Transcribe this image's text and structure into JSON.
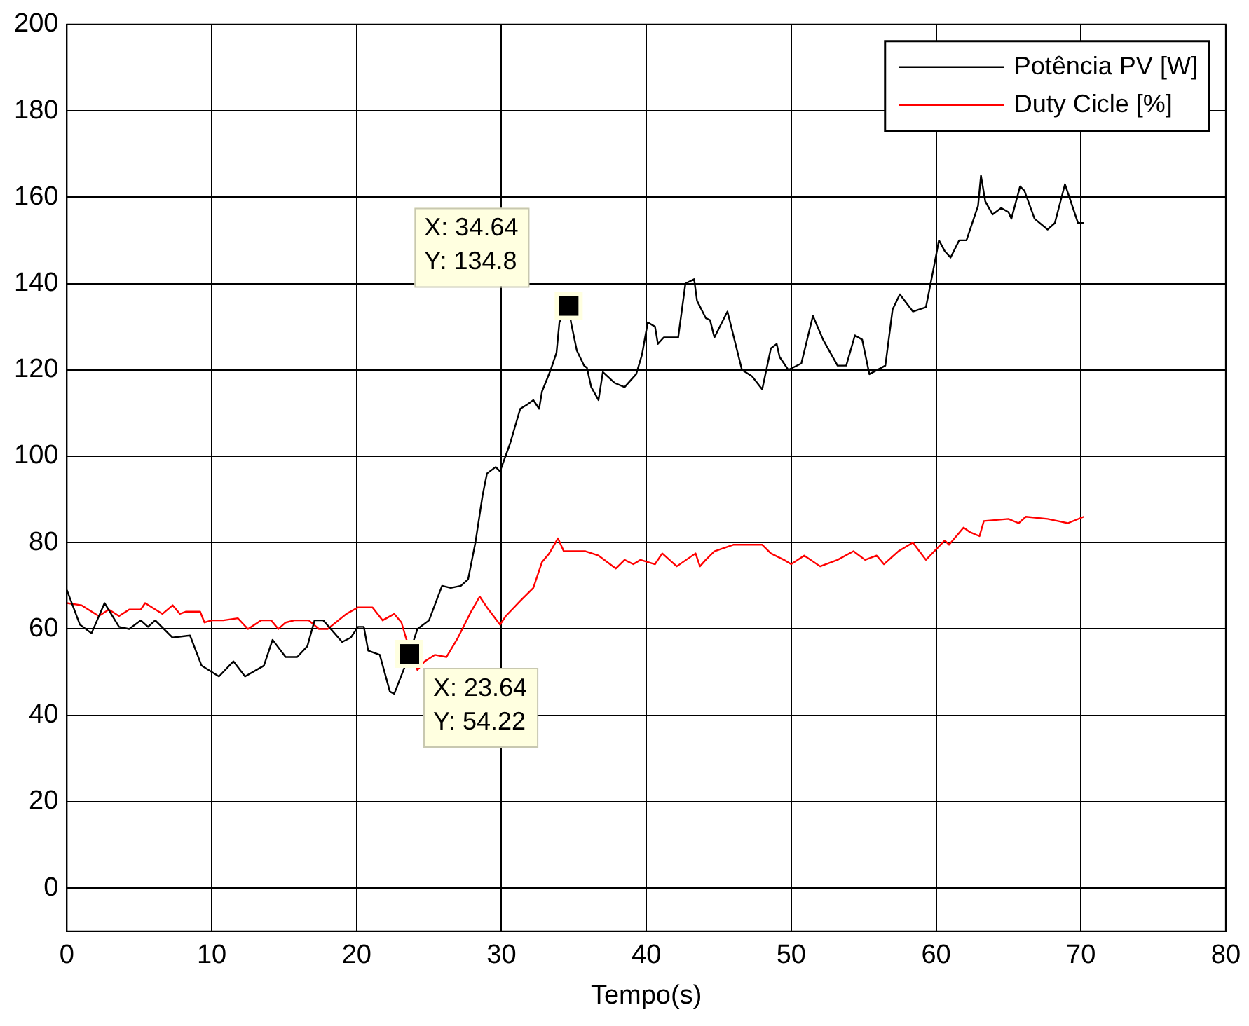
{
  "chart_data": {
    "type": "line",
    "xlabel": "Tempo(s)",
    "xlim": [
      0,
      80
    ],
    "xticks": [
      0,
      10,
      20,
      30,
      40,
      50,
      60,
      70,
      80
    ],
    "ylim": [
      -10,
      200
    ],
    "yticks": [
      0,
      20,
      40,
      60,
      80,
      100,
      120,
      140,
      160,
      180,
      200
    ],
    "grid": true,
    "legend": "top right",
    "marker": "none",
    "line_style": "solid",
    "series": [
      {
        "name": "Potência PV [W]",
        "color": "#000000",
        "x": [
          0,
          0.9,
          1.7,
          2.6,
          3.6,
          4.3,
          5.1,
          5.6,
          6.1,
          7.3,
          8.5,
          9.3,
          10.5,
          11.5,
          12.3,
          13.6,
          14.2,
          15.1,
          15.9,
          16.6,
          17.1,
          17.7,
          19,
          19.6,
          20.1,
          20.5,
          20.8,
          21.6,
          22.3,
          22.6,
          23.3,
          23.64,
          24.2,
          25,
          25.9,
          26.5,
          27.2,
          27.7,
          28.2,
          28.7,
          29,
          29.6,
          29.9,
          30.6,
          31.3,
          31.8,
          32.2,
          32.6,
          32.8,
          33.4,
          33.8,
          34,
          34.64,
          34.8,
          35.2,
          35.7,
          35.9,
          36.2,
          36.7,
          37,
          37.8,
          38.5,
          39.3,
          39.7,
          40.1,
          40.6,
          40.8,
          41.2,
          42.2,
          42.7,
          43.3,
          43.5,
          44.1,
          44.4,
          44.7,
          45.6,
          46.6,
          47.3,
          48,
          48.6,
          49,
          49.2,
          49.8,
          50.7,
          51.5,
          52.2,
          53.2,
          53.8,
          54.4,
          54.9,
          55.4,
          56.5,
          57,
          57.5,
          58.4,
          59.3,
          59.8,
          60.2,
          60.6,
          61,
          61.6,
          62.1,
          62.9,
          63.1,
          63.4,
          63.9,
          64.5,
          65,
          65.2,
          65.8,
          66.1,
          66.8,
          67.7,
          68.2,
          68.9,
          69.8,
          70.2
        ],
        "values": [
          69,
          61,
          59,
          66,
          60.5,
          60,
          62,
          60.5,
          62,
          58,
          58.5,
          51.5,
          49,
          52.5,
          49,
          51.5,
          57.5,
          53.5,
          53.5,
          56,
          62,
          62,
          57,
          58,
          60.5,
          60.5,
          55,
          54,
          45.5,
          45,
          51,
          54.22,
          60,
          62,
          70,
          69.5,
          70,
          71.5,
          80,
          91,
          96,
          97.5,
          96.5,
          103,
          111,
          112,
          113,
          111,
          115,
          120,
          124,
          131,
          134.8,
          131,
          124.5,
          121,
          120.5,
          116,
          113,
          119.5,
          117,
          116,
          119,
          123.5,
          131,
          130,
          126,
          127.5,
          127.5,
          140,
          141,
          136,
          132,
          131.5,
          127.5,
          133.5,
          120,
          118.5,
          115.5,
          125,
          126,
          123,
          120,
          121.5,
          132.5,
          127,
          121,
          121,
          128,
          127,
          119,
          121,
          134,
          137.5,
          133.5,
          134.5,
          143,
          150,
          147.5,
          146,
          150,
          150,
          158,
          165,
          159,
          156,
          157.5,
          156.5,
          155,
          162.5,
          161.5,
          155,
          152.5,
          154,
          163,
          154,
          154
        ]
      },
      {
        "name": "Duty Cicle [%]",
        "color": "#ff0000",
        "x": [
          0,
          1,
          2.2,
          2.9,
          3.6,
          4.3,
          5.1,
          5.4,
          6.6,
          7.3,
          7.8,
          8.2,
          9.2,
          9.5,
          10,
          10.8,
          11.8,
          12.5,
          13.4,
          14.1,
          14.6,
          15.1,
          15.7,
          16.7,
          17.4,
          18,
          19.3,
          20.1,
          21.1,
          21.8,
          22.6,
          23.1,
          23.4,
          24.2,
          24.7,
          25.4,
          26.2,
          27,
          27.9,
          28.5,
          29,
          29.9,
          30.3,
          31.3,
          32.2,
          32.8,
          33.3,
          33.9,
          34.3,
          35.8,
          36.7,
          37.9,
          38.5,
          39.1,
          39.6,
          40.6,
          41.1,
          42.1,
          43.4,
          43.7,
          44.1,
          44.7,
          46,
          48,
          48.6,
          49.5,
          50,
          50.9,
          52,
          53.2,
          54.3,
          55.1,
          55.9,
          56.4,
          57.4,
          58.4,
          59.3,
          60.6,
          60.9,
          61.9,
          62.3,
          63,
          63.3,
          65,
          65.7,
          66.2,
          67.7,
          68.4,
          69.1,
          70.2
        ],
        "values": [
          66,
          65.5,
          63,
          64.5,
          63,
          64.5,
          64.5,
          66,
          63.5,
          65.5,
          63.5,
          64,
          64,
          61.5,
          62,
          62,
          62.5,
          60,
          62,
          62,
          60,
          61.5,
          62,
          62,
          60,
          60,
          63.5,
          65,
          65,
          62,
          63.5,
          61.5,
          58,
          50.5,
          52.5,
          54,
          53.5,
          58,
          64,
          67.5,
          65,
          61,
          63,
          66.5,
          69.5,
          75.5,
          77.5,
          81,
          78,
          78,
          77,
          74,
          76,
          75,
          76,
          75,
          77.5,
          74.5,
          77.5,
          74.5,
          76,
          78,
          79.5,
          79.5,
          77.5,
          76,
          75,
          77,
          74.5,
          76,
          78,
          76,
          77,
          75,
          78,
          80,
          76,
          80.5,
          79.5,
          83.5,
          82.5,
          81.5,
          85,
          85.5,
          84.5,
          86,
          85.5,
          85,
          84.5,
          86
        ]
      }
    ],
    "annotations": [
      {
        "text": "X: 34.64\nY: 134.8",
        "x": 34.64,
        "y": 134.8
      },
      {
        "text": "X: 23.64\nY: 54.22",
        "x": 23.64,
        "y": 54.22
      }
    ]
  }
}
